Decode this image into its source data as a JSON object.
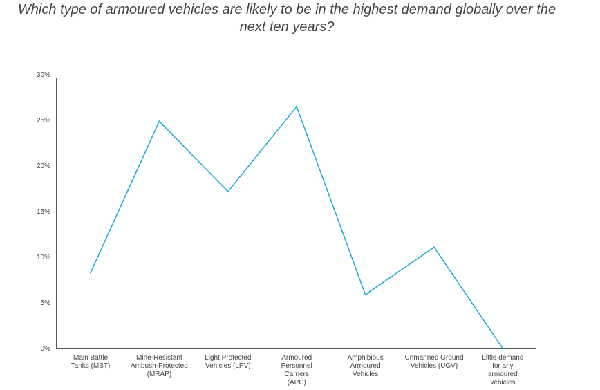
{
  "chart_data": {
    "type": "line",
    "title": "Which type of armoured vehicles are likely to be in the highest demand globally over the next ten years?",
    "xlabel": "",
    "ylabel": "",
    "ylim": [
      0,
      30
    ],
    "yticks": [
      "0%",
      "5%",
      "10%",
      "15%",
      "20%",
      "25%",
      "30%"
    ],
    "grid": false,
    "line_color": "#1aa7d4",
    "categories": [
      "Main Battle Tanks (MBT)",
      "Mine-Resistant Ambush-Protected (MRAP)",
      "Light Protected Vehicles (LPV)",
      "Armoured Personnel Carriers (APC)",
      "Amphibious Armoured Vehicles",
      "Unmanned Ground Vehicles (UGV)",
      "Little demand for any armoured vehicles"
    ],
    "values": [
      8.3,
      24.9,
      17.2,
      26.5,
      5.9,
      11.1,
      0
    ]
  }
}
